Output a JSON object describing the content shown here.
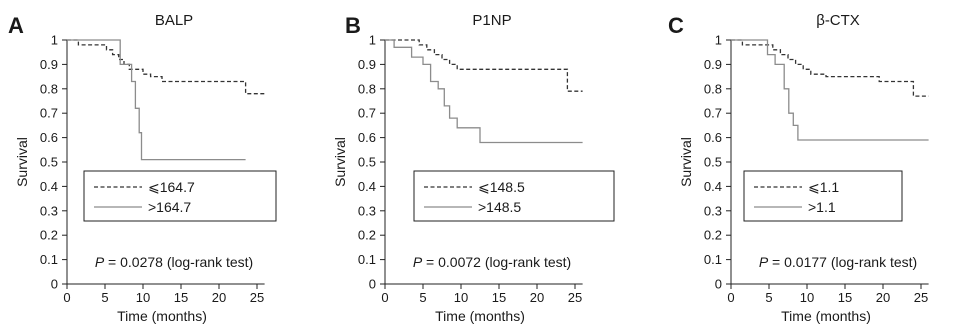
{
  "chart_data": [
    {
      "type": "line",
      "panel_letter": "A",
      "title": "BALP",
      "xlabel": "Time (months)",
      "ylabel": "Survival",
      "xlim": [
        0,
        26
      ],
      "ylim": [
        0,
        1
      ],
      "x_ticks": [
        0,
        5,
        10,
        15,
        20,
        25
      ],
      "y_ticks": [
        0,
        0.1,
        0.2,
        0.3,
        0.4,
        0.5,
        0.6,
        0.7,
        0.8,
        0.9,
        1
      ],
      "legend_position": "left",
      "series": [
        {
          "name": "⩽164.7",
          "style": "dashed",
          "color": "#333333",
          "x": [
            0,
            1.5,
            4.5,
            5.2,
            6.0,
            6.8,
            7.5,
            8.2,
            9.0,
            10.0,
            11.0,
            12.5,
            23.5,
            26
          ],
          "y": [
            1,
            0.98,
            0.98,
            0.96,
            0.94,
            0.92,
            0.9,
            0.88,
            0.88,
            0.86,
            0.85,
            0.83,
            0.78,
            0.78
          ]
        },
        {
          "name": ">164.7",
          "style": "solid",
          "color": "#8c8c8c",
          "x": [
            0,
            6.5,
            7.0,
            8.5,
            9.0,
            9.5,
            9.8,
            23.5
          ],
          "y": [
            1,
            1,
            0.9,
            0.83,
            0.72,
            0.62,
            0.51,
            0.51
          ]
        }
      ],
      "annotation": {
        "p_label": "P",
        "p_text": " = 0.0278 (log-rank test)"
      }
    },
    {
      "type": "line",
      "panel_letter": "B",
      "title": "P1NP",
      "xlabel": "Time (months)",
      "ylabel": "Survival",
      "xlim": [
        0,
        26
      ],
      "ylim": [
        0,
        1
      ],
      "x_ticks": [
        0,
        5,
        10,
        15,
        20,
        25
      ],
      "y_ticks": [
        0,
        0.1,
        0.2,
        0.3,
        0.4,
        0.5,
        0.6,
        0.7,
        0.8,
        0.9,
        1
      ],
      "legend_position": "left",
      "series": [
        {
          "name": "⩽148.5",
          "style": "dashed",
          "color": "#333333",
          "x": [
            0,
            4.5,
            5.5,
            6.5,
            7.5,
            8.5,
            9.5,
            24.0,
            26
          ],
          "y": [
            1,
            0.98,
            0.96,
            0.94,
            0.92,
            0.9,
            0.88,
            0.79,
            0.79
          ]
        },
        {
          "name": ">148.5",
          "style": "solid",
          "color": "#8c8c8c",
          "x": [
            0,
            1.2,
            3.5,
            5.0,
            6.0,
            7.0,
            7.8,
            8.5,
            9.5,
            12.5,
            26
          ],
          "y": [
            1,
            0.97,
            0.93,
            0.9,
            0.83,
            0.8,
            0.73,
            0.68,
            0.64,
            0.58,
            0.58
          ]
        }
      ],
      "annotation": {
        "p_label": "P",
        "p_text": " = 0.0072 (log-rank test)"
      }
    },
    {
      "type": "line",
      "panel_letter": "C",
      "title": "β-CTX",
      "xlabel": "Time (months)",
      "ylabel": "Survival",
      "xlim": [
        0,
        26
      ],
      "ylim": [
        0,
        1
      ],
      "x_ticks": [
        0,
        5,
        10,
        15,
        20,
        25
      ],
      "y_ticks": [
        0,
        0.1,
        0.2,
        0.3,
        0.4,
        0.5,
        0.6,
        0.7,
        0.8,
        0.9,
        1
      ],
      "legend_position": "left",
      "series": [
        {
          "name": "⩽1.1",
          "style": "dashed",
          "color": "#333333",
          "x": [
            0,
            1.5,
            4.5,
            5.5,
            6.5,
            7.5,
            8.5,
            9.5,
            10.5,
            12.5,
            19.5,
            24.0,
            26
          ],
          "y": [
            1,
            0.98,
            0.98,
            0.96,
            0.94,
            0.92,
            0.9,
            0.88,
            0.86,
            0.85,
            0.83,
            0.77,
            0.77
          ]
        },
        {
          "name": ">1.1",
          "style": "solid",
          "color": "#8c8c8c",
          "x": [
            0,
            4.8,
            5.8,
            7.0,
            7.6,
            8.2,
            8.8,
            9.5,
            26
          ],
          "y": [
            1,
            0.94,
            0.9,
            0.8,
            0.7,
            0.65,
            0.59,
            0.59,
            0.59
          ]
        }
      ],
      "annotation": {
        "p_label": "P",
        "p_text": " = 0.0177 (log-rank test)"
      }
    }
  ]
}
